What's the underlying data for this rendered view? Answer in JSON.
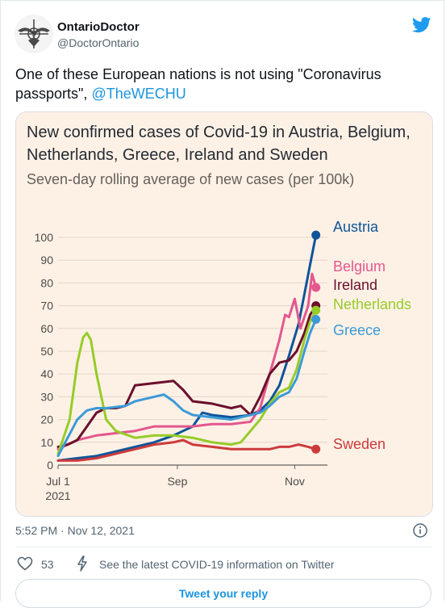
{
  "tweet": {
    "display_name": "OntarioDoctor",
    "handle": "@DoctorOntario",
    "text": "One of these European nations is not using \"Coronavirus passports\", ",
    "mention": "@TheWECHU",
    "timestamp": "5:52 PM · Nov 12, 2021",
    "likes": "53",
    "covid_link": "See the latest COVID-19 information on Twitter",
    "reply_label": "Tweet your reply"
  },
  "icons": {
    "avatar": "seal-avatar-icon",
    "bird": "twitter-bird-icon",
    "info": "info-icon",
    "heart": "heart-icon",
    "bolt": "bolt-icon"
  },
  "colors": {
    "twitter_blue": "#1d9bf0",
    "chart_bg": "#fdf1e6"
  },
  "chart_data": {
    "type": "line",
    "title": "New confirmed cases of Covid-19 in Austria, Belgium, Netherlands, Greece, Ireland and Sweden",
    "subtitle": "Seven-day rolling average of new cases (per 100k)",
    "ylim": [
      0,
      100
    ],
    "yticks": [
      "0",
      "10",
      "20",
      "30",
      "40",
      "50",
      "60",
      "70",
      "80",
      "90",
      "100"
    ],
    "xticks": [
      {
        "label": "Jul 1",
        "sublabel": "2021",
        "day": 0
      },
      {
        "label": "Sep",
        "sublabel": "",
        "day": 62
      },
      {
        "label": "Nov",
        "sublabel": "",
        "day": 123
      }
    ],
    "grid": true,
    "series": [
      {
        "name": "Austria",
        "color": "#0f5499",
        "points": [
          [
            0,
            2
          ],
          [
            10,
            3
          ],
          [
            20,
            4
          ],
          [
            30,
            6
          ],
          [
            40,
            8
          ],
          [
            50,
            10
          ],
          [
            60,
            13
          ],
          [
            70,
            17
          ],
          [
            75,
            23
          ],
          [
            80,
            22
          ],
          [
            90,
            21
          ],
          [
            100,
            22
          ],
          [
            105,
            24
          ],
          [
            110,
            28
          ],
          [
            115,
            35
          ],
          [
            120,
            48
          ],
          [
            125,
            62
          ],
          [
            128,
            75
          ],
          [
            131,
            88
          ],
          [
            134,
            101
          ]
        ]
      },
      {
        "name": "Belgium",
        "color": "#e3588d",
        "points": [
          [
            0,
            7
          ],
          [
            10,
            11
          ],
          [
            20,
            13
          ],
          [
            30,
            14
          ],
          [
            40,
            15
          ],
          [
            50,
            17
          ],
          [
            60,
            17
          ],
          [
            70,
            17
          ],
          [
            80,
            18
          ],
          [
            90,
            18
          ],
          [
            100,
            19
          ],
          [
            105,
            25
          ],
          [
            110,
            40
          ],
          [
            115,
            55
          ],
          [
            118,
            66
          ],
          [
            120,
            65
          ],
          [
            123,
            73
          ],
          [
            126,
            60
          ],
          [
            130,
            70
          ],
          [
            132,
            84
          ],
          [
            134,
            78
          ]
        ]
      },
      {
        "name": "Ireland",
        "color": "#6b0f2b",
        "points": [
          [
            0,
            8
          ],
          [
            5,
            9
          ],
          [
            10,
            11
          ],
          [
            15,
            17
          ],
          [
            20,
            23
          ],
          [
            25,
            25
          ],
          [
            30,
            25
          ],
          [
            35,
            26
          ],
          [
            40,
            35
          ],
          [
            50,
            36
          ],
          [
            60,
            37
          ],
          [
            65,
            33
          ],
          [
            70,
            28
          ],
          [
            80,
            27
          ],
          [
            90,
            25
          ],
          [
            95,
            26
          ],
          [
            100,
            22
          ],
          [
            105,
            30
          ],
          [
            110,
            40
          ],
          [
            115,
            45
          ],
          [
            120,
            46
          ],
          [
            124,
            50
          ],
          [
            128,
            58
          ],
          [
            131,
            66
          ],
          [
            134,
            70
          ]
        ]
      },
      {
        "name": "Netherlands",
        "color": "#96cc28",
        "points": [
          [
            0,
            5
          ],
          [
            6,
            20
          ],
          [
            10,
            45
          ],
          [
            13,
            56
          ],
          [
            15,
            58
          ],
          [
            17,
            55
          ],
          [
            20,
            40
          ],
          [
            25,
            20
          ],
          [
            30,
            15
          ],
          [
            40,
            12
          ],
          [
            50,
            13
          ],
          [
            60,
            13
          ],
          [
            70,
            12
          ],
          [
            80,
            10
          ],
          [
            90,
            9
          ],
          [
            95,
            10
          ],
          [
            100,
            15
          ],
          [
            105,
            20
          ],
          [
            110,
            27
          ],
          [
            115,
            32
          ],
          [
            120,
            34
          ],
          [
            124,
            42
          ],
          [
            128,
            55
          ],
          [
            131,
            63
          ],
          [
            134,
            68
          ]
        ]
      },
      {
        "name": "Greece",
        "color": "#3c9ad6",
        "points": [
          [
            0,
            4
          ],
          [
            5,
            12
          ],
          [
            10,
            20
          ],
          [
            15,
            24
          ],
          [
            20,
            25
          ],
          [
            25,
            25
          ],
          [
            35,
            26
          ],
          [
            40,
            28
          ],
          [
            45,
            29
          ],
          [
            50,
            30
          ],
          [
            55,
            31
          ],
          [
            60,
            28
          ],
          [
            65,
            24
          ],
          [
            70,
            22
          ],
          [
            80,
            21
          ],
          [
            90,
            20
          ],
          [
            95,
            21
          ],
          [
            100,
            22
          ],
          [
            105,
            23
          ],
          [
            110,
            26
          ],
          [
            115,
            30
          ],
          [
            120,
            32
          ],
          [
            124,
            38
          ],
          [
            128,
            50
          ],
          [
            131,
            58
          ],
          [
            134,
            64
          ]
        ]
      },
      {
        "name": "Sweden",
        "color": "#cc3b3b",
        "points": [
          [
            0,
            2
          ],
          [
            10,
            2
          ],
          [
            20,
            3
          ],
          [
            30,
            5
          ],
          [
            40,
            7
          ],
          [
            50,
            9
          ],
          [
            60,
            10
          ],
          [
            65,
            11
          ],
          [
            70,
            9
          ],
          [
            80,
            8
          ],
          [
            90,
            7
          ],
          [
            100,
            7
          ],
          [
            110,
            7
          ],
          [
            115,
            8
          ],
          [
            120,
            8
          ],
          [
            125,
            9
          ],
          [
            130,
            8
          ],
          [
            134,
            7
          ]
        ]
      }
    ]
  }
}
